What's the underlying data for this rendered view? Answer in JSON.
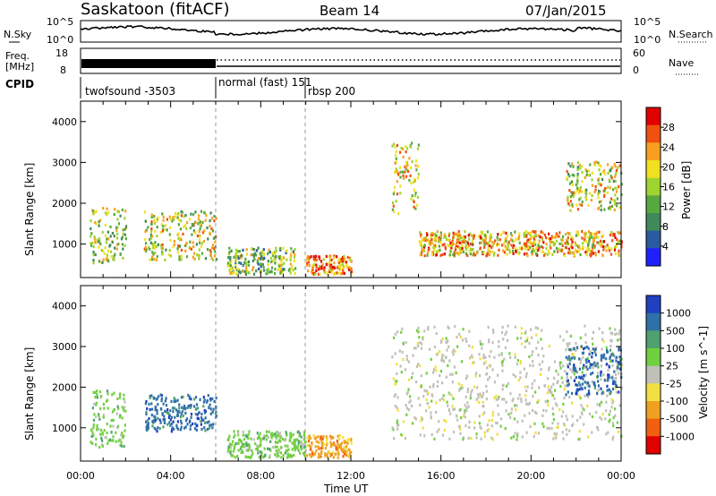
{
  "header": {
    "station": "Saskatoon (fitACF)",
    "beam": "Beam 14",
    "date": "07/Jan/2015"
  },
  "noise_panel": {
    "left_label": "N.Sky",
    "right_label": "N.Search",
    "left_ticks": [
      "10^5",
      "10^0"
    ],
    "right_ticks": [
      "10^5",
      "10^0"
    ]
  },
  "freq_panel": {
    "left_label_line1": "Freq.",
    "left_label_line2": "[MHz]",
    "left_ticks": [
      "18",
      "8"
    ],
    "right_label": "Nave",
    "right_ticks": [
      "60",
      "0"
    ]
  },
  "cpid_panel": {
    "label": "CPID",
    "segments": [
      {
        "name": "twofsound -3503",
        "start_hour": 0
      },
      {
        "name": "normal (fast) 151",
        "start_hour": 6
      },
      {
        "name": "rbsp 200",
        "start_hour": 10
      }
    ]
  },
  "time_axis": {
    "label": "Time UT",
    "ticks": [
      "00:00",
      "04:00",
      "08:00",
      "12:00",
      "16:00",
      "20:00",
      "00:00"
    ]
  },
  "chart_data": [
    {
      "type": "heatmap",
      "name": "power",
      "ylabel": "Slant Range [km]",
      "yticks": [
        1000,
        2000,
        3000,
        4000
      ],
      "ylim": [
        180,
        4500
      ],
      "xlim_hours": [
        0,
        24
      ],
      "colorbar_label": "Power [dB]",
      "colorbar_ticks": [
        4,
        8,
        12,
        16,
        20,
        24,
        28
      ],
      "colorbar_range": [
        0,
        32
      ],
      "colors": [
        "#2020ff",
        "#2a5aa0",
        "#3f8a5a",
        "#58a840",
        "#9fd430",
        "#f0e020",
        "#f7a020",
        "#f05010",
        "#e00000"
      ],
      "echo_regions": [
        {
          "x": [
            0.4,
            2.0
          ],
          "y": [
            500,
            1900
          ],
          "core": 16
        },
        {
          "x": [
            2.8,
            6.0
          ],
          "y": [
            600,
            1800
          ],
          "core": 18
        },
        {
          "x": [
            6.5,
            9.5
          ],
          "y": [
            250,
            900
          ],
          "core": 14
        },
        {
          "x": [
            10.0,
            12.0
          ],
          "y": [
            250,
            700
          ],
          "core": 26
        },
        {
          "x": [
            13.8,
            15.0
          ],
          "y": [
            1700,
            3500
          ],
          "core": 20
        },
        {
          "x": [
            15.0,
            24.0
          ],
          "y": [
            700,
            1300
          ],
          "core": 22
        },
        {
          "x": [
            21.5,
            24.0
          ],
          "y": [
            1800,
            3000
          ],
          "core": 18
        }
      ]
    },
    {
      "type": "heatmap",
      "name": "velocity",
      "ylabel": "Slant Range [km]",
      "yticks": [
        1000,
        2000,
        3000,
        4000
      ],
      "ylim": [
        180,
        4500
      ],
      "xlim_hours": [
        0,
        24
      ],
      "colorbar_label": "Velocity [m s^-1]",
      "colorbar_ticks": [
        "1000",
        "500",
        "100",
        "25",
        "-25",
        "-100",
        "-500",
        "-1000"
      ],
      "colors": [
        "#2040c0",
        "#3070a8",
        "#50a070",
        "#70d040",
        "#c0c0b8",
        "#f0e040",
        "#f0a020",
        "#f06010",
        "#e00000"
      ],
      "echo_regions": [
        {
          "x": [
            0.4,
            2.0
          ],
          "y": [
            500,
            1900
          ],
          "core": "green"
        },
        {
          "x": [
            2.8,
            6.0
          ],
          "y": [
            900,
            1800
          ],
          "core": "blue"
        },
        {
          "x": [
            6.5,
            10.0
          ],
          "y": [
            250,
            900
          ],
          "core": "green"
        },
        {
          "x": [
            10.0,
            12.0
          ],
          "y": [
            250,
            800
          ],
          "core": "orange"
        },
        {
          "x": [
            13.8,
            24.0
          ],
          "y": [
            700,
            3500
          ],
          "core": "grey"
        },
        {
          "x": [
            21.5,
            24.0
          ],
          "y": [
            1800,
            3000
          ],
          "core": "blue"
        }
      ]
    }
  ]
}
